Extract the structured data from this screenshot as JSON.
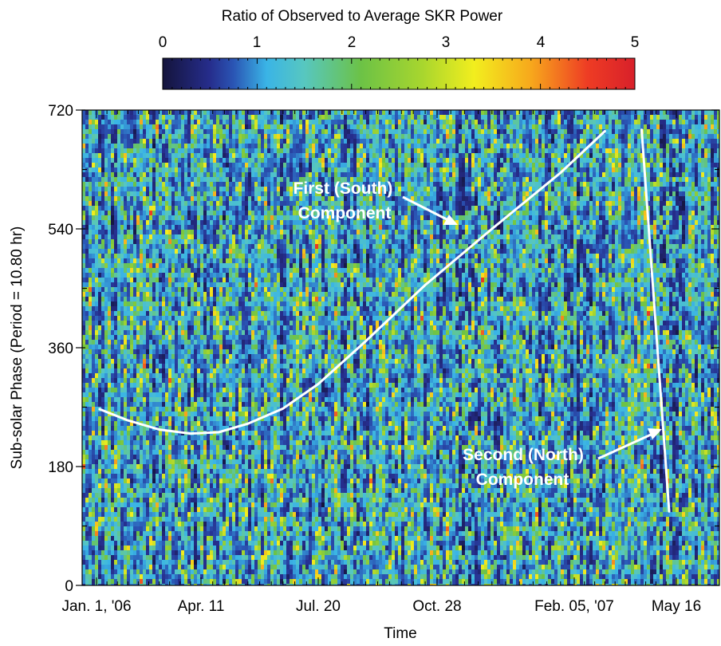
{
  "chart_data": {
    "type": "heatmap",
    "title": "",
    "xlabel": "Time",
    "ylabel": "Sub-solar  Phase (Period = 10.80 hr)",
    "colorbar": {
      "label": "Ratio of Observed to Average SKR Power",
      "range": [
        0,
        5
      ],
      "ticks": [
        "0",
        "1",
        "2",
        "3",
        "4",
        "5"
      ],
      "colors": [
        "#14143c",
        "#262d8c",
        "#2a55b4",
        "#3ab4e6",
        "#57c7c0",
        "#6cc246",
        "#a8d62e",
        "#f2ee1e",
        "#f7a81c",
        "#ee3c24",
        "#d8202a"
      ],
      "color_stops": [
        0,
        0.1,
        0.15,
        0.22,
        0.3,
        0.42,
        0.55,
        0.66,
        0.78,
        0.9,
        1
      ]
    },
    "x_axis": {
      "range_days": [
        0,
        503
      ],
      "tick_days": [
        0,
        100,
        200,
        300,
        400,
        500
      ],
      "tick_labels": [
        "Jan. 1, '06",
        "Apr. 11",
        "Jul. 20",
        "Oct. 28",
        "Feb. 05, '07",
        "May 16"
      ]
    },
    "y_axis": {
      "range": [
        0,
        720
      ],
      "ticks": [
        0,
        180,
        360,
        540,
        720
      ],
      "tick_labels": [
        "0",
        "180",
        "360",
        "540",
        "720"
      ]
    },
    "series": [
      {
        "name": "First (South) Component",
        "points": [
          [
            3,
            267
          ],
          [
            30,
            250
          ],
          [
            60,
            236
          ],
          [
            90,
            230
          ],
          [
            115,
            232
          ],
          [
            140,
            245
          ],
          [
            170,
            268
          ],
          [
            200,
            305
          ],
          [
            240,
            370
          ],
          [
            290,
            455
          ],
          [
            340,
            540
          ],
          [
            390,
            625
          ],
          [
            430,
            688
          ]
        ]
      },
      {
        "name": "Second (North) Component",
        "points": [
          [
            466,
            690
          ],
          [
            493,
            112
          ]
        ]
      }
    ],
    "annotations": [
      {
        "lines": [
          "First (South)",
          "Component"
        ],
        "arrow_to": [
          315,
          550
        ]
      },
      {
        "lines": [
          "Second (North)",
          "Component"
        ],
        "arrow_to": [
          487,
          238
        ]
      }
    ]
  }
}
